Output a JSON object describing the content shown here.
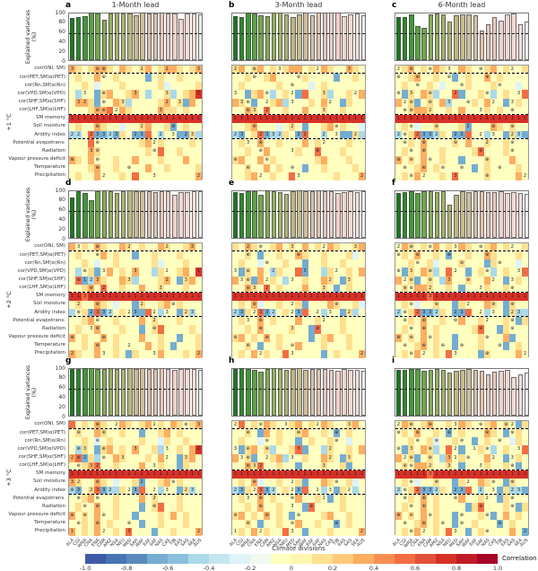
{
  "chart_data": {
    "type": "heatmap",
    "layout": "3x3 panel grid; each panel = bar chart of explained variances above a 14x21 correlation heatmap",
    "column_titles": [
      "1-Month lead",
      "3-Month lead",
      "6-Month lead"
    ],
    "row_group_labels": [
      "+1 °C",
      "+2 °C",
      "+3 °C"
    ],
    "x_axis_title": "Climate divisions",
    "x_categories": [
      "ALA",
      "CGI",
      "WNA",
      "CNA",
      "ENA",
      "CAM",
      "AMZ",
      "NSA",
      "NEU",
      "MED",
      "SAH",
      "WAF",
      "EAF",
      "SAF",
      "NAS",
      "CAS",
      "TIB",
      "EAS",
      "SAS",
      "SEA",
      "AUS"
    ],
    "heatmap_row_labels": [
      "cor(ONI, SM)",
      "cor(PET,SM)α(PET)",
      "cor(Rn,SM)α(Rn)",
      "cor(VPD,SM)α(VPD)",
      "cor(SHF,SM)α(SHF)",
      "cor(LHF,SM)α(LHF)",
      "SM memory",
      "Soil moisture",
      "Aridity index",
      "Potential evapotrans.",
      "Radiation",
      "Vapour pressure deficit",
      "Temperature",
      "Precipitation"
    ],
    "separators_after_rows": [
      0,
      5,
      8
    ],
    "bar_axis": {
      "label": "Explained variances (%)",
      "ticks": [
        0,
        20,
        40,
        60,
        80,
        100
      ],
      "range": [
        0,
        100
      ],
      "dashed_reference": 60
    },
    "bar_colors": [
      "#1a7a1f",
      "#2c8a2b",
      "#429638",
      "#5ba044",
      "#72a84d",
      "#86ad55",
      "#96b05f",
      "#a4b36b",
      "#b0b577",
      "#bcb783",
      "#c6ba8f",
      "#cfbd9b",
      "#d8c0a7",
      "#dfc4b1",
      "#e5c8ba",
      "#eaccc2",
      "#eed1c9",
      "#f1d5cf",
      "#f3dad4",
      "#f5ded9",
      "#ececec"
    ],
    "color_palette": {
      "B": "#4575b4",
      "b": "#74add1",
      "c": "#abd9e9",
      "d": "#e0f3f8",
      "y": "#ffffbf",
      "Y": "#fee090",
      "o": "#fdae61",
      "O": "#f46d43",
      "R": "#d73027"
    },
    "annotation_symbols": {
      "*": "⊛"
    },
    "panels": [
      {
        "letter": "a",
        "group": 0,
        "col": 0,
        "bars": [
          87,
          89,
          91,
          98,
          96,
          84,
          97,
          98,
          97,
          96,
          93,
          98,
          97,
          97,
          98,
          97,
          97,
          86,
          96,
          96,
          95
        ],
        "cells": [
          "oYyYooYyoYyYoyYooYyYo",
          "yYyyoyyYyyyybyYyyYyyy",
          "yyYydyyyYyyyyyYdyyyyY",
          "ycyybYoyyYoycyyYcyYoR",
          "yooYbyyoYcyyyyYoyYboy",
          "yyyYooOyoYyyyyoYYyYyy",
          "RRRRRRRRRRRRRRRRRRRRR",
          "yYyyoYyydyyYoyyYbyYyy",
          "ccyObbcbYybbOycyybbYc",
          "yyyOyyyyyyyYoyYyyyyYy",
          "yyyoYyyyyyyyYyOyyYyyy",
          "oYyoyyyYyyoyyyYyyyoyy",
          "yyyYoyyYyyyyoyyYyyyyY",
          "yYyyoyyyYyOyyyyyyyyyo"
        ],
        "annotations": [
          "3...**.....2...2....3",
          ".....*...............",
          ".....................",
          "..3..*....3....3....2",
          ".32..*..3......2.3...",
          "....**.2......3......",
          "111111111111111111111",
          "....*......2....*....",
          "22.23323..23..2.3.23.",
          "....*........2.......",
          "...3*........*.......",
          "*...*................",
          "....*....*...........",
          ".....2.......3......2"
        ]
      },
      {
        "letter": "b",
        "group": 0,
        "col": 1,
        "bars": [
          90,
          89,
          99,
          96,
          93,
          90,
          98,
          99,
          95,
          88,
          95,
          98,
          92,
          98,
          99,
          99,
          98,
          91,
          94,
          97,
          93
        ],
        "cells": [
          "YoyYoyYyYooyYyoYyyoYy",
          "yyYyyYoyyyyYyyyybyyYy",
          "yYyyyyyYyyyydyYyyyyyy",
          "yybYoycyYybOyyYcyyYyo",
          "oYybyyYocyyyYyoyybYyy",
          "yyoYyOyyYyyoyyYyyYyyy",
          "RRRRRRRRRRRRRRRRRRRRR",
          "yyYoyyydyYybyyYoyYyyd",
          "cbyYObccYybOyycyybbYc",
          "yYyyoyyYyyyoyYyyyyYyy",
          "yyYyyoyyyyYyyOyyyYyyy",
          "YoyyoyYyyyyyyYoyyyYyy",
          "yyYyyoyYyyybyyYyyyyYy",
          "yyYoyyYyyOyyyyyyYyyyo"
        ],
        "annotations": [
          "2..*...3.....2....3..",
          "...*......*..........",
          ".........*...........",
          "3....*...2....3....2.",
          ".3*..2...3.....2.....",
          "..*3.2........3......",
          "111111111111111111111",
          "...*.....2......*....",
          "23..2332..23..2.3..2.",
          "..3.*.........2......",
          "....*....3...*.......",
          "*....*...............",
          "..*......*...........",
          "....2.....3.........2"
        ]
      },
      {
        "letter": "c",
        "group": 0,
        "col": 2,
        "bars": [
          88,
          88,
          95,
          70,
          66,
          95,
          96,
          94,
          80,
          92,
          95,
          94,
          93,
          62,
          75,
          88,
          82,
          95,
          97,
          75,
          80
        ],
        "cells": [
          "yYoyYyoYyyoYyyYoyYyyY",
          "yyYoyyYyybyYyyoyYyyyy",
          "yYyyyYydyyyYyyyYyyydy",
          "ybYyoYcyyObyyYycyYyyO",
          "oyYbyYyocyyyYyoyybyYy",
          "yyYooYyyYyoyyyYyYyyyy",
          "RRRRRRRRRRRRRRRRRRRRR",
          "yYydyyYyyyYbyyyoYyYyy",
          "cyYObbcYybbOyycyybYcb",
          "yyYyoyyyyYyoyyYyyYyyy",
          "yYyyoyyYyyyyYOyyyYyyy",
          "oyYyoyyYyybyyyYyyyoyy",
          "yyyYoyYyyyyybyYyyyyYy",
          "yYyoyyyYyOyyyyYyyyyoy"
        ],
        "annotations": [
          "2.*..*..3....*....2..",
          "*..*....*.....*......",
          "...*......*.....*....",
          "*.3..*...2....*....3.",
          ".2*..*..3..*...2..3..",
          ".**..2.......3....*..",
          "111111111111111111111",
          "..*...*....2...*..*..",
          "2*.2332..23..2.3..23.",
          ".*..*....*....2...*..",
          "..*.*........*....*..",
          "*.*..*........*......",
          ".*..*..*..*.....*....",
          "..*.2....3....*.....2"
        ]
      },
      {
        "letter": "d",
        "group": 1,
        "col": 0,
        "bars": [
          84,
          96,
          92,
          78,
          97,
          98,
          96,
          92,
          97,
          98,
          96,
          96,
          97,
          95,
          96,
          96,
          88,
          94,
          95,
          96,
          96
        ],
        "cells": [
          "oyYyoYyyoYyYyyoYyyYoy",
          "yYyyyoyYyybyyYyyyYyyy",
          "yyYydyyYyyyyyYdyyyYyy",
          "ycyYbyoyYyoyycYyyYoyR",
          "yObcoYyyoYcyyyYoybYoy",
          "yyYoyOyyYyyoyyYyyyYyy",
          "RRORRRRRRRRRRRRRRRRRR",
          "yYyyoYydyybYyyYoyYyyy",
          "cyYbObcyYybbOycyybYcy",
          "yyYoyyyYyyyoyYyyyYyyy",
          "yYyyoyyyYyybyYOyyyyYy",
          "oyYyyoyYyyyoyyYyybyyY",
          "yyYyoyyYyyyyoyYybyyyY",
          "oYyyoyyYybYyyyoyyyYyo"
        ],
        "annotations": [
          ".3..*....2.....2...3.",
          "....*................",
          ".....................",
          "..*..3....3....2....1",
          ".*123....3.....2..3..",
          "...*.2........3......",
          "113111111111111111111",
          ".2..*......2....*....",
          ".*.2332..23..2.3..23.",
          "....*........2.......",
          "...3*........*.......",
          "*....*...............",
          "....*....2...........",
          "2....3.......3......2"
        ]
      },
      {
        "letter": "e",
        "group": 1,
        "col": 1,
        "bars": [
          95,
          92,
          97,
          96,
          88,
          98,
          97,
          95,
          90,
          97,
          98,
          96,
          97,
          98,
          97,
          96,
          92,
          95,
          97,
          94,
          96
        ],
        "cells": [
          "YyoYyyYoyYyoyYyoYyyYo",
          "yyYybyyYyyoYyyYyyyYdy",
          "yYyydyyyYyybyyYyyYyyy",
          "ybYyoycYyyObyycYyyYyo",
          "oyYboyYycyyYyyoYybYyy",
          "yyoYyOyYyyyoyyYybyYyy",
          "RRRRRRRRRRRRRRRRRRRRR",
          "yYyodyyYyyYbyyyoYyyYd",
          "cbYyObcyYybOyycyybYcy",
          "yYyyoyYyyyoyyYyyyYyyy",
          "yyYyoyyyyYyybOyyyYyyy",
          "YoyYyoyYyyyybyYoyyYyy",
          "yyYybyyYyyoyyyYyyyYyy",
          "yYyoyYyyOyyyyybyYyyyo"
        ],
        "annotations": [
          "..2.*....3....2....3.",
          "..*.......*..........",
          ".....*...............",
          "3.*...2....3....2....",
          ".3*..2...3.....2..3..",
          "..*3.2........3......",
          "111111111111111111111",
          "...*.....2......*....",
          "23.2332..23..2.3..2..",
          "..3.*.........2......",
          "....*....3...*.......",
          "*....*...............",
          "..*......*...........",
          "....2....3..........2"
        ]
      },
      {
        "letter": "f",
        "group": 1,
        "col": 2,
        "bars": [
          92,
          94,
          96,
          93,
          97,
          97,
          95,
          96,
          68,
          88,
          96,
          95,
          97,
          96,
          94,
          95,
          96,
          93,
          95,
          92,
          90
        ],
        "cells": [
          "yoYyYyoyYyoYyyYoyYyyY",
          "yYyoyyYybyyYyyoYyyyYy",
          "yyYyyYdyyyYyyybYyyydy",
          "ybYyoYcyOyybyYycyYyyO",
          "oyYbyYycoyyYyyoyybyYy",
          "yYyooYyyYybyyyYyyYyyy",
          "RRRRRORRRRRRRRRRRRRRR",
          "yYydyyYyybYyyyoYybYyy",
          "cyYObbcYybbOyycyybYcc",
          "yyYyoyyYyyoyyYyyyYybY",
          "yYyyoyYyyyyyYOyybYyyy",
          "oyYyoyYyybyyyYyyyobyy",
          "yyyYoyYyybyyyYyyybyYy",
          "yYyoyyYyOyyyybYyyyyoy"
        ],
        "annotations": [
          "2.*..*...3...*....2..",
          "*..*....*.....*......",
          "...*......*.....*....",
          "*.3..*...2....*....3.",
          ".2*..*..3..*...2..3..",
          ".**..2.......3....*..",
          "111113111111111111111",
          "..*...*....2...*..*..",
          "2*.2332..23..2.3..23.",
          ".*..*....*....2...*..",
          "..*.*........*....*..",
          "*.*..*........*......",
          ".*..*..*..*.....*....",
          "..*.2....3....*.....2"
        ]
      },
      {
        "letter": "g",
        "group": 2,
        "col": 0,
        "bars": [
          97,
          96,
          99,
          98,
          97,
          96,
          98,
          97,
          96,
          98,
          97,
          98,
          97,
          96,
          98,
          97,
          95,
          96,
          97,
          96,
          95
        ],
        "cells": [
          "OyYyoYyyoYyYoyYyoYyYo",
          "yYyyoYyyYyybyyYoyYyyy",
          "yyYydyYyyyyYyydYyyYyy",
          "ycYybYoyYyoyyYcyyYyoR",
          "oObYcyyoYyyyYyoyybYoy",
          "yyYoOyyYyyyoyyYyybYyy",
          "RRRRRRRRRRRRRRRRRRRRR",
          "oYyyoYydyyYbyyYoyYyyy",
          "cbyYObccYybOyycyybYcy",
          "yyYoyyyYyyyoyYyyyYyyy",
          "yYyyoyyYyyybyYOyyYyyy",
          "oyYyoyyYyybyyyYyoyYyy",
          "yyYyoyYyyyybyyYyyyYyy",
          "oyYyoyyYyOyyybyyYyyyo"
        ],
        "annotations": [
          "....*..2.....2....*.3",
          ".*...*...............",
          "....*................",
          ".*3..*....3....3....2",
          "2*2..*..3......2..3..",
          ".*.32........3.......",
          "111111111111111111111",
          "32..*......2....*....",
          "*3.2332..23..2.3..23.",
          ".*..*........2.......",
          "..*.*........*.......",
          "*.*..*...............",
          ".*..*....*...........",
          "1....2...3..........2"
        ]
      },
      {
        "letter": "h",
        "group": 2,
        "col": 1,
        "bars": [
          96,
          98,
          97,
          95,
          90,
          97,
          98,
          96,
          94,
          97,
          98,
          95,
          96,
          97,
          96,
          95,
          92,
          96,
          95,
          94,
          93
        ],
        "cells": [
          "yOyYyoYyyYoyYyoYyyYoy",
          "yyYyboyYyyYoyyYybyYyy",
          "yYyydyyYyybyYyyYyydyy",
          "ybYoyYcyyYObyycYyyYyo",
          "oyYbyyYocyyYyyoYybYyy",
          "yyoYOyyYyybyyyYyyYbyy",
          "RRRRRRRRRRRRRRRRRRRRR",
          "yYyodyyYyyYbyyoYyyYdy",
          "cbYyObcyYybOyycybYycy",
          "yYyyoyYyyyoyyYybyYyyy",
          "yyYyoyyYyyybOyyyyYyyy",
          "YoyYyoyYybyyyyYoyyYyy",
          "yyYybyyYyyoyyYyybyYyy",
          "yYyoyYyyOyybyyyYyyyyo"
        ],
        "annotations": [
          "2...*...3....2....3..",
          "..*.......*.....*....",
          ".....*..........*....",
          "3.*..*....3....2.....",
          ".3*..2...3.....2..3..",
          "..*32.........3......",
          "111111111111111111111",
          "...*.....2......*....",
          "23.2332..23..2.3..2..",
          "..3.*....*....2......",
          "....*....3..*........",
          "*....*....*..........",
          "..*......*......*....",
          "1...2....3..........2"
        ]
      },
      {
        "letter": "i",
        "group": 2,
        "col": 2,
        "bars": [
          95,
          94,
          96,
          97,
          93,
          95,
          96,
          94,
          88,
          92,
          95,
          96,
          94,
          93,
          85,
          90,
          93,
          95,
          80,
          85,
          88
        ],
        "cells": [
          "yoYyYoyyYyoYyyYoyYybY",
          "yYyoyyYybyYyyyoYybyYy",
          "yyYyyYdyyYyybyYyyydYy",
          "ybYyoYcyOybyyYycyYyyO",
          "oyYbyYycoyYyyyoyybyYy",
          "yYyooYyyYybyyyYyyYyby",
          "RRRRRORRRRRRRRRRRRRRR",
          "yYydyyYyybYyyoYyybYyy",
          "cyYObbcYybbOycyybYccb",
          "yyYyoyYyyyoyyYyybYyyy",
          "yYyyoyYyyyybYOyyyYybY",
          "oyYyoyYyybyyyYybyoyYy",
          "yyyYoyYyybyyYyyybyYyy",
          "yYyoyyYyOyybyYyyyyoyb"
        ],
        "annotations": [
          "2.*..*...3...*...*2..",
          "*..*....*.....*...*..",
          "...*..*...*.....*....",
          "*.3..*...2..1.*....3.",
          ".2*..*..31.*...2..3..",
          ".**..2..3....3....*..",
          "111113111111111111111",
          "..*...*....2...*..*..",
          "2*.2332..23..2.3..23.",
          ".*..*....*....2...*..",
          "..*.*........*....*..",
          "*.*..*....*...*......",
          ".*..*..*..*.....*....",
          "..*.2....3....*.....2"
        ]
      }
    ],
    "colorbar": {
      "label": "Correlation",
      "tick_labels": [
        "-1.0",
        "-0.8",
        "-0.6",
        "-0.4",
        "-0.2",
        "0",
        "0.2",
        "0.4",
        "0.6",
        "0.8",
        "1.0"
      ],
      "colors": [
        "#3d59a8",
        "#4575b4",
        "#5a8ac0",
        "#74add1",
        "#8abfdd",
        "#abd9e9",
        "#c5e6f0",
        "#e0f3f8",
        "#f2faef",
        "#ffffbf",
        "#fff5ae",
        "#fee090",
        "#fdca79",
        "#fdae61",
        "#f98e52",
        "#f46d43",
        "#e2503a",
        "#d73027",
        "#bf1c27",
        "#a50026"
      ]
    }
  }
}
